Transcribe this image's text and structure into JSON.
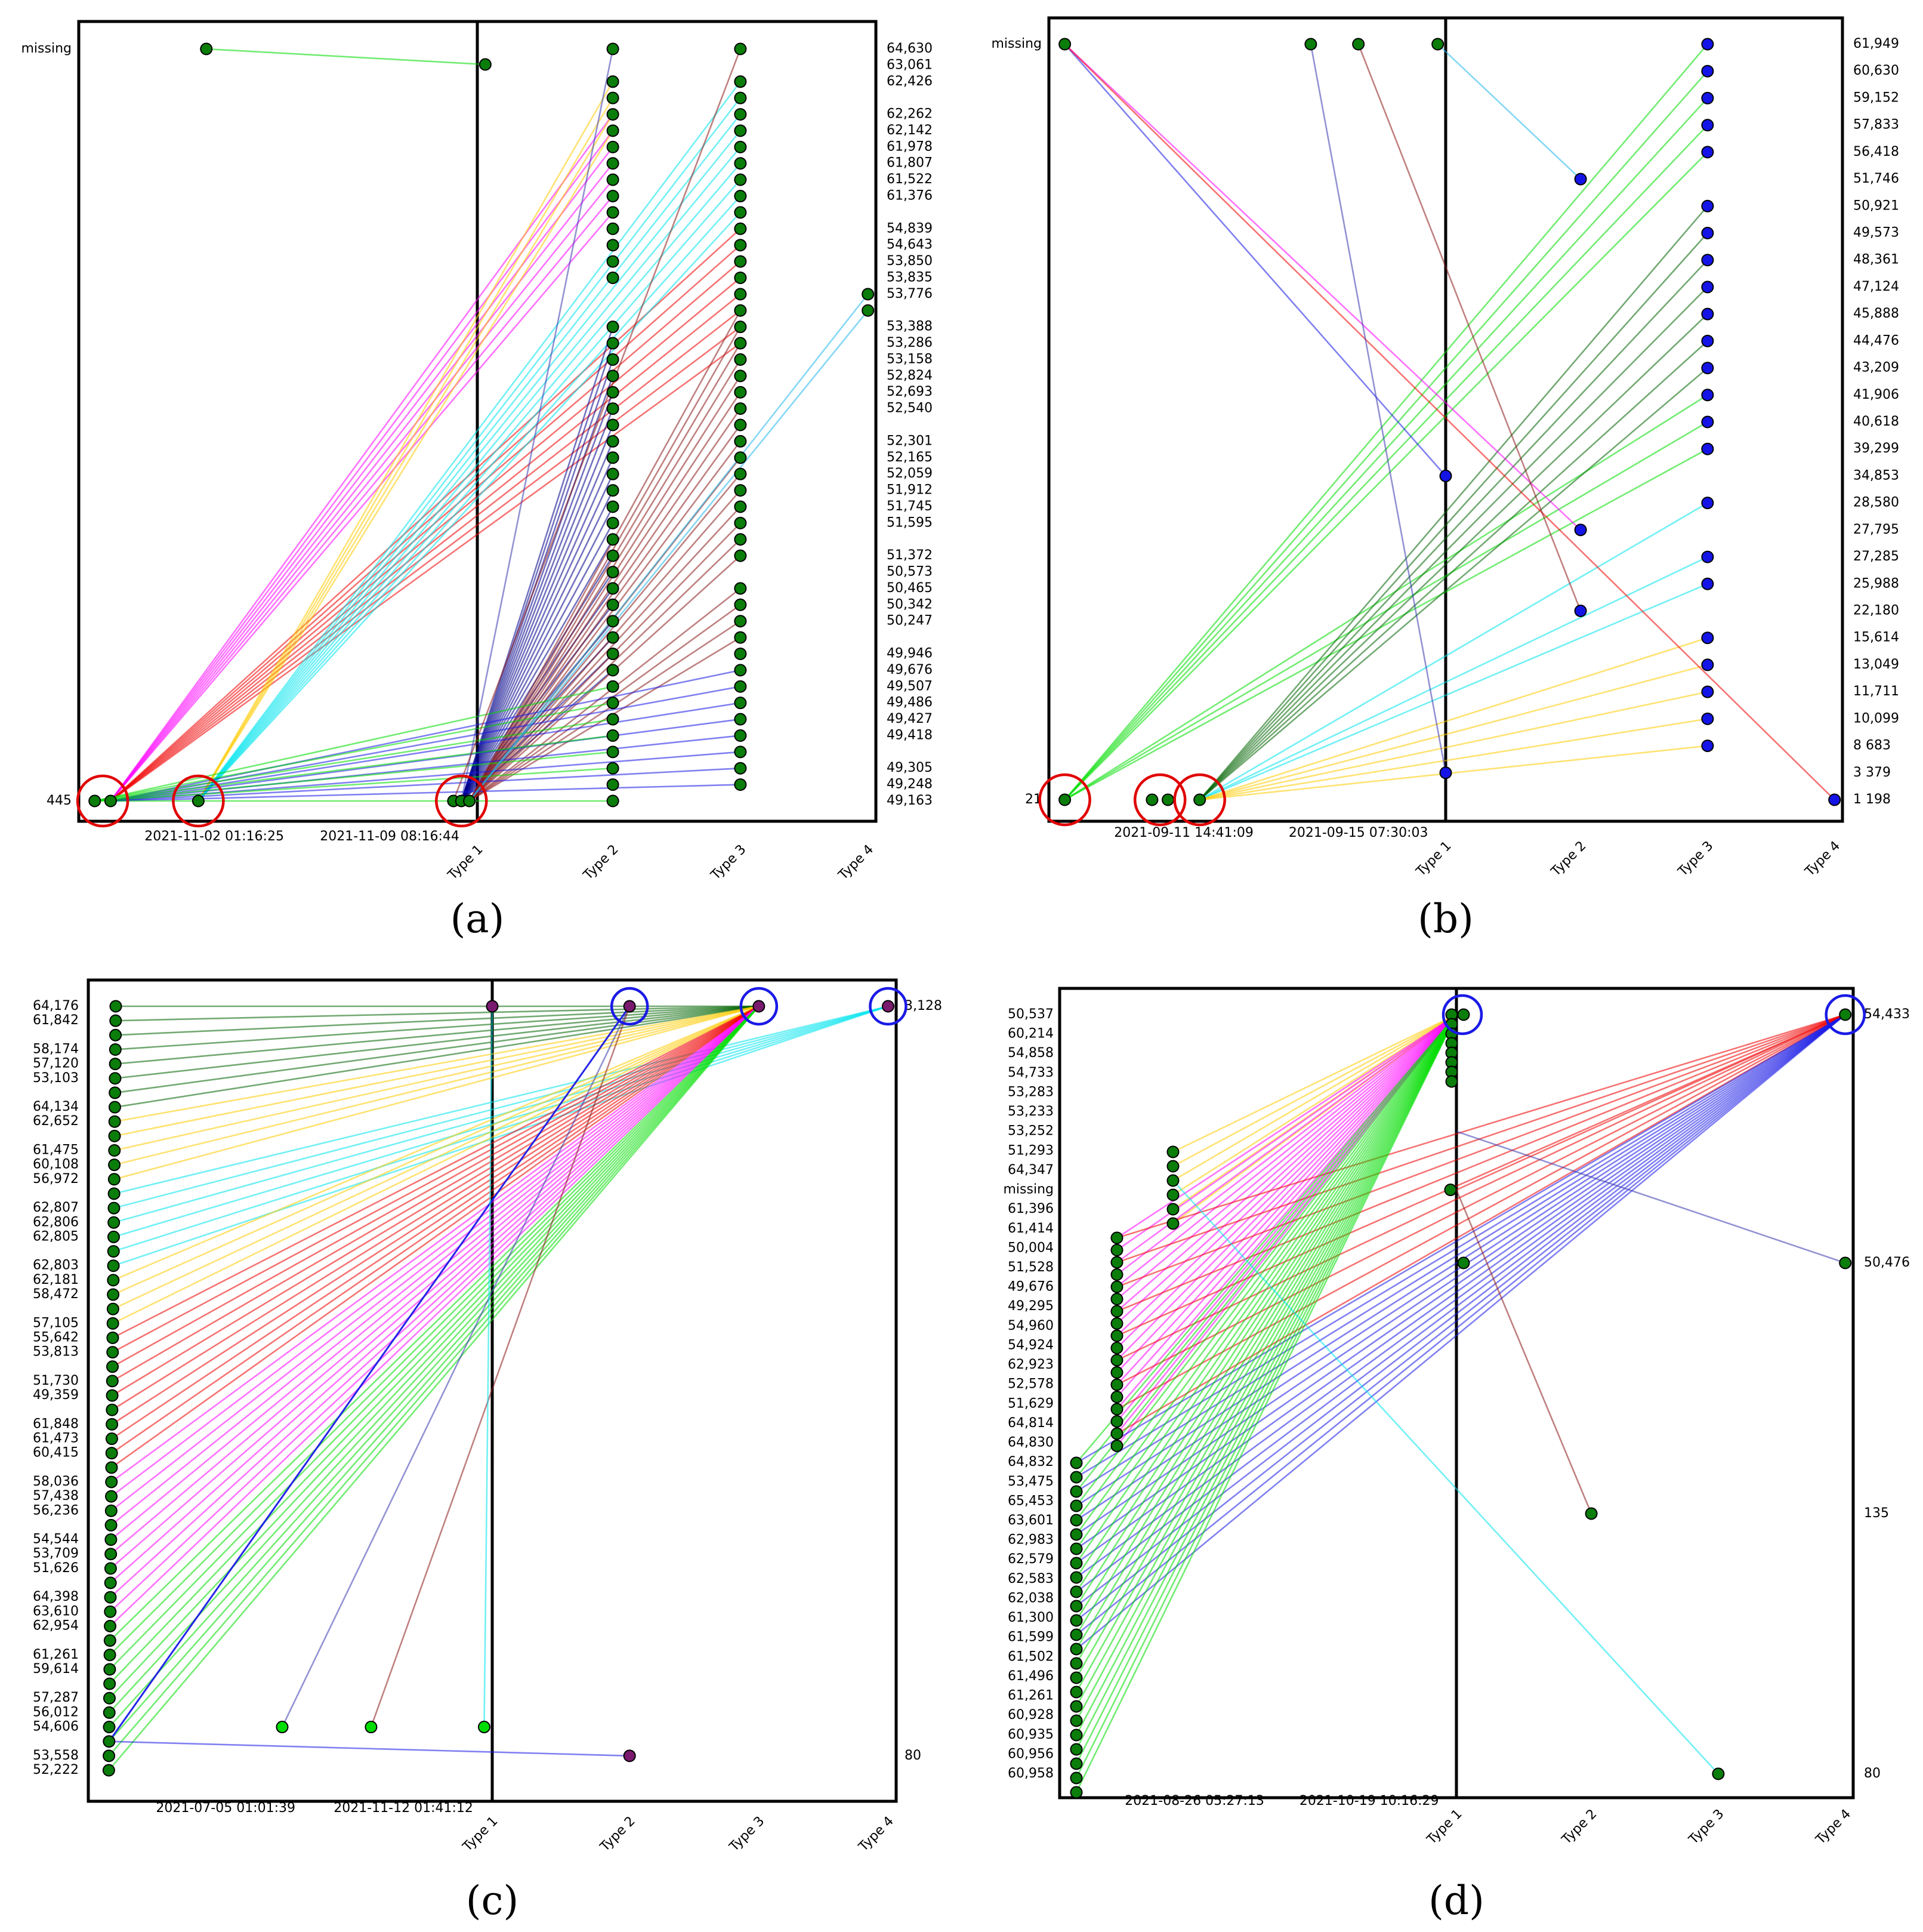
{
  "chart_data": [
    {
      "id": "a",
      "type": "scatter-line",
      "panel_label": "(a)",
      "left_labels": [
        "missing",
        "445"
      ],
      "x_tick_labels": [
        "2021-11-02 01:16:25",
        "2021-11-09 08:16:44",
        "Type 1",
        "Type 2",
        "Type 3",
        "Type 4"
      ],
      "right_labels": [
        "64,630",
        "63,061",
        "62,426",
        "62,262",
        "62,142",
        "61,978",
        "61,807",
        "61,522",
        "61,376",
        "54,839",
        "54,643",
        "53,850",
        "53,835",
        "53,776",
        "53,388",
        "53,286",
        "53,158",
        "52,824",
        "52,693",
        "52,540",
        "52,301",
        "52,165",
        "52,059",
        "51,912",
        "51,745",
        "51,595",
        "51,372",
        "50,573",
        "50,465",
        "50,342",
        "50,247",
        "49,946",
        "49,676",
        "49,507",
        "49,486",
        "49,427",
        "49,418",
        "49,305",
        "49,248",
        "49,163"
      ],
      "right_label_slots": [
        0,
        1,
        2,
        4,
        5,
        6,
        7,
        8,
        9,
        11,
        12,
        13,
        14,
        15,
        17,
        18,
        19,
        20,
        21,
        22,
        24,
        25,
        26,
        27,
        28,
        29,
        31,
        32,
        33,
        34,
        35,
        37,
        38,
        39,
        40,
        41,
        42,
        44,
        45,
        46
      ],
      "num_slots": 47,
      "divider_fraction": 0.5,
      "column_x_fractions": {
        "Type 1": 0.5,
        "Type 2": 0.67,
        "Type 3": 0.83,
        "Type 4": 0.99
      },
      "sources": [
        {
          "slot": "bottom",
          "x_fraction": 0.02
        },
        {
          "slot": "bottom",
          "x_fraction": 0.04
        },
        {
          "slot": "bottom",
          "x_fraction": 0.15
        },
        {
          "slot": "bottom",
          "x_fraction": 0.47
        },
        {
          "slot": "bottom",
          "x_fraction": 0.48
        },
        {
          "slot": "bottom",
          "x_fraction": 0.49
        },
        {
          "slot": "missing",
          "x_fraction": 0.16
        },
        {
          "slot": "missing",
          "x_fraction": 0.51
        }
      ],
      "target_slots": {
        "Type 2": [
          0,
          2,
          3,
          4,
          5,
          6,
          7,
          8,
          9,
          10,
          11,
          12,
          13,
          14,
          17,
          18,
          19,
          20,
          21,
          22,
          23,
          24,
          25,
          26,
          27,
          28,
          29,
          30,
          31,
          32,
          33,
          34,
          35,
          36,
          37,
          38,
          39,
          40,
          41,
          42,
          43,
          44,
          45,
          46
        ],
        "Type 3": [
          0,
          2,
          3,
          4,
          5,
          6,
          7,
          8,
          9,
          10,
          11,
          12,
          13,
          14,
          15,
          16,
          17,
          18,
          19,
          20,
          21,
          22,
          23,
          24,
          25,
          26,
          27,
          28,
          29,
          30,
          31,
          33,
          34,
          35,
          36,
          37,
          38,
          39,
          40,
          41,
          42,
          43,
          44,
          45
        ],
        "Type 4": [
          15,
          16
        ]
      },
      "line_groups": [
        {
          "color": "magenta",
          "source": 1,
          "column": "Type 2",
          "slots": [
            4,
            5,
            6,
            7,
            8,
            9,
            10
          ]
        },
        {
          "color": "red",
          "source": 1,
          "column": "Type 3",
          "slots": [
            11,
            12,
            13,
            14,
            15,
            16,
            17,
            18
          ]
        },
        {
          "color": "gold",
          "source": 2,
          "column": "Type 2",
          "slots": [
            2,
            3,
            4,
            5
          ]
        },
        {
          "color": "cyan",
          "source": 2,
          "column": "Type 3",
          "slots": [
            2,
            3,
            4,
            5,
            6,
            7,
            8,
            9,
            10
          ]
        },
        {
          "color": "navy",
          "source": 4,
          "column": "Type 2",
          "slots": [
            17,
            18,
            19,
            20,
            21,
            22,
            23,
            24,
            25,
            26,
            27,
            28,
            29,
            30,
            31,
            32,
            33,
            34,
            35,
            36,
            37,
            38
          ]
        },
        {
          "color": "brown",
          "source": 5,
          "column": "Type 3",
          "slots": [
            16,
            17,
            18,
            19,
            20,
            21,
            22,
            23,
            24,
            25,
            26,
            27,
            28,
            29,
            30,
            31,
            33,
            34,
            35,
            36
          ]
        },
        {
          "color": "blue",
          "source": 1,
          "column": "Type 3",
          "slots": [
            38,
            39,
            40,
            41,
            42,
            43,
            44,
            45
          ]
        },
        {
          "color": "green",
          "source": 0,
          "column": "Type 2",
          "slots": [
            39,
            40,
            41,
            42,
            43,
            44,
            46
          ]
        },
        {
          "color": "skyblue",
          "source": 5,
          "column": "Type 4",
          "slots": [
            15,
            16
          ]
        },
        {
          "color": "slateblue",
          "source": 4,
          "column": "Type 2",
          "slots": [
            0
          ]
        },
        {
          "color": "brown",
          "source": 3,
          "column": "Type 3",
          "slots": [
            0
          ]
        },
        {
          "color": "green",
          "source": 6,
          "column": "source7",
          "slots": []
        }
      ],
      "highlights": [
        {
          "ring": "red",
          "slot": "bottom",
          "x_fraction": 0.03
        },
        {
          "ring": "red",
          "slot": "bottom",
          "x_fraction": 0.15
        },
        {
          "ring": "red",
          "slot": "bottom",
          "x_fraction": 0.48
        }
      ],
      "marker_color": "#0a7d0a",
      "right_marker_color": "#0a7d0a"
    },
    {
      "id": "b",
      "type": "scatter-line",
      "panel_label": "(b)",
      "left_labels": [
        "missing",
        "21"
      ],
      "x_tick_labels": [
        "2021-09-11 14:41:09",
        "2021-09-15 07:30:03",
        "Type 1",
        "Type 2",
        "Type 3",
        "Type 4"
      ],
      "right_labels": [
        "61,949",
        "60,630",
        "59,152",
        "57,833",
        "56,418",
        "51,746",
        "50,921",
        "49,573",
        "48,361",
        "47,124",
        "45,888",
        "44,476",
        "43,209",
        "41,906",
        "40,618",
        "39,299",
        "34,853",
        "28,580",
        "27,795",
        "27,285",
        "25,988",
        "22,180",
        "15,614",
        "13,049",
        "11,711",
        "10,099",
        "8 683",
        "3 379",
        "1 198"
      ],
      "right_label_slots": [
        0,
        1,
        2,
        3,
        4,
        5,
        6,
        7,
        8,
        9,
        10,
        11,
        12,
        13,
        14,
        15,
        16,
        17,
        18,
        19,
        20,
        21,
        22,
        23,
        24,
        25,
        26,
        27,
        28
      ],
      "num_slots": 29,
      "divider_fraction": 0.5,
      "column_x_fractions": {
        "Type 1": 0.5,
        "Type 2": 0.67,
        "Type 3": 0.83,
        "Type 4": 0.99
      },
      "sources": [
        {
          "slot": "bottom",
          "x_fraction": 0.02
        },
        {
          "slot": "bottom",
          "x_fraction": 0.13
        },
        {
          "slot": "bottom",
          "x_fraction": 0.15
        },
        {
          "slot": "bottom",
          "x_fraction": 0.19
        },
        {
          "slot": "missing",
          "x_fraction": 0.02
        },
        {
          "slot": "missing",
          "x_fraction": 0.33
        },
        {
          "slot": "missing",
          "x_fraction": 0.39
        },
        {
          "slot": "missing",
          "x_fraction": 0.49
        }
      ],
      "target_slots": {
        "Type 1": [
          16,
          27
        ],
        "Type 2": [
          5,
          18,
          21
        ],
        "Type 3": [
          0,
          1,
          2,
          3,
          4,
          6,
          7,
          8,
          9,
          10,
          11,
          12,
          13,
          14,
          15,
          17,
          19,
          20,
          22,
          23,
          24,
          25,
          26
        ],
        "Type 4": [
          28
        ]
      },
      "line_groups": [
        {
          "color": "green",
          "source": 0,
          "column": "Type 3",
          "slots": [
            0,
            1,
            2,
            3,
            4,
            13,
            14,
            15
          ]
        },
        {
          "color": "darkgreen",
          "source": 3,
          "column": "Type 3",
          "slots": [
            6,
            7,
            8,
            9,
            10,
            11,
            12
          ]
        },
        {
          "color": "cyan",
          "source": 3,
          "column": "Type 3",
          "slots": [
            17,
            19,
            20
          ]
        },
        {
          "color": "gold",
          "source": 3,
          "column": "Type 3",
          "slots": [
            22,
            23,
            24,
            25,
            26
          ]
        },
        {
          "color": "blue",
          "source": 4,
          "column": "Type 1",
          "slots": [
            16
          ]
        },
        {
          "color": "magenta",
          "source": 4,
          "column": "Type 2",
          "slots": [
            18
          ]
        },
        {
          "color": "red",
          "source": 4,
          "column": "Type 4",
          "slots": [
            28
          ]
        },
        {
          "color": "slateblue",
          "source": 5,
          "column": "Type 1",
          "slots": [
            27
          ]
        },
        {
          "color": "brown",
          "source": 6,
          "column": "Type 2",
          "slots": [
            21
          ]
        },
        {
          "color": "skyblue",
          "source": 7,
          "column": "Type 2",
          "slots": [
            5
          ]
        }
      ],
      "highlights": [
        {
          "ring": "red",
          "slot": "bottom",
          "x_fraction": 0.02
        },
        {
          "ring": "red",
          "slot": "bottom",
          "x_fraction": 0.14
        },
        {
          "ring": "red",
          "slot": "bottom",
          "x_fraction": 0.19
        }
      ],
      "marker_color": "#0a7d0a",
      "right_marker_color": "#1414e6"
    },
    {
      "id": "c",
      "type": "scatter-line",
      "panel_label": "(c)",
      "left_labels": [
        "64,176",
        "61,842",
        "58,174",
        "57,120",
        "53,103",
        "64,134",
        "62,652",
        "61,475",
        "60,108",
        "56,972",
        "62,807",
        "62,806",
        "62,805",
        "62,803",
        "62,181",
        "58,472",
        "57,105",
        "55,642",
        "53,813",
        "51,730",
        "49,359",
        "61,848",
        "61,473",
        "60,415",
        "58,036",
        "57,438",
        "56,236",
        "54,544",
        "53,709",
        "51,626",
        "64,398",
        "63,610",
        "62,954",
        "61,261",
        "59,614",
        "57,287",
        "56,012",
        "54,606",
        "53,558",
        "52,222"
      ],
      "left_label_slots": [
        0,
        1,
        3,
        4,
        5,
        7,
        8,
        10,
        11,
        12,
        14,
        15,
        16,
        18,
        19,
        20,
        22,
        23,
        24,
        26,
        27,
        29,
        30,
        31,
        33,
        34,
        35,
        37,
        38,
        39,
        41,
        42,
        43,
        45,
        46,
        48,
        49,
        50,
        52,
        53
      ],
      "num_slots": 54,
      "right_labels": [
        "3,128",
        "80"
      ],
      "x_tick_labels": [
        "2021-07-05 01:01:39",
        "2021-11-12 01:41:12",
        "Type 1",
        "Type 2",
        "Type 3",
        "Type 4"
      ],
      "divider_fraction": 0.5,
      "column_x_fractions": {
        "Type 1": 0.5,
        "Type 2": 0.67,
        "Type 3": 0.83,
        "Type 4": 0.99
      },
      "line_groups": [
        {
          "color": "darkgreen",
          "target": "Type 3",
          "slots": [
            0,
            1,
            2,
            3,
            4,
            5,
            6,
            7
          ]
        },
        {
          "color": "gold",
          "target": "Type 3",
          "slots": [
            8,
            9,
            10,
            11,
            12
          ]
        },
        {
          "color": "cyan",
          "target": "Type 4",
          "slots": [
            13,
            14,
            15,
            16,
            17,
            18
          ]
        },
        {
          "color": "gold",
          "target": "Type 3",
          "slots": [
            19,
            20,
            21,
            22
          ]
        },
        {
          "color": "red",
          "target": "Type 3",
          "slots": [
            23,
            24,
            25,
            26,
            27,
            28,
            29,
            30,
            31,
            32
          ]
        },
        {
          "color": "magenta",
          "target": "Type 3",
          "slots": [
            33,
            34,
            35,
            36,
            37,
            38,
            39,
            40,
            41,
            42,
            43
          ]
        },
        {
          "color": "green",
          "target": "Type 3",
          "slots": [
            44,
            45,
            46,
            47,
            48,
            49,
            50,
            51,
            52,
            53
          ]
        }
      ],
      "extra_points": [
        {
          "label": "Type 1 top",
          "x_fraction": 0.5,
          "slot": 0,
          "color": "purple"
        },
        {
          "label": "Type 2 top",
          "x_fraction": 0.67,
          "slot": 0,
          "color": "purple"
        },
        {
          "label": "Type 3 top",
          "x_fraction": 0.83,
          "slot": 0,
          "color": "purple"
        },
        {
          "label": "Type 4 top",
          "x_fraction": 0.99,
          "slot": 0,
          "color": "purple"
        },
        {
          "label": "mid 1",
          "x_fraction": 0.24,
          "slot": 50,
          "color": "green"
        },
        {
          "label": "mid 2",
          "x_fraction": 0.35,
          "slot": 50,
          "color": "green"
        },
        {
          "label": "mid 3",
          "x_fraction": 0.49,
          "slot": 50,
          "color": "green"
        },
        {
          "label": "Type 2 bottom",
          "x_fraction": 0.67,
          "slot": 52,
          "color": "purple"
        }
      ],
      "highlights": [
        {
          "ring": "blue",
          "column": "Type 2"
        },
        {
          "ring": "blue",
          "column": "Type 3"
        },
        {
          "ring": "blue",
          "column": "Type 4"
        }
      ],
      "marker_color": "#0a7d0a",
      "right_marker_color": "#7a1a6e"
    },
    {
      "id": "d",
      "type": "scatter-line",
      "panel_label": "(d)",
      "left_labels": [
        "50,537",
        "60,214",
        "54,858",
        "54,733",
        "53,283",
        "53,233",
        "53,252",
        "51,293",
        "64,347",
        "missing",
        "61,396",
        "61,414",
        "50,004",
        "51,528",
        "49,676",
        "49,295",
        "54,960",
        "54,924",
        "62,923",
        "52,578",
        "51,629",
        "64,814",
        "64,830",
        "64,832",
        "53,475",
        "65,453",
        "63,601",
        "62,983",
        "62,579",
        "62,583",
        "62,038",
        "61,300",
        "61,599",
        "61,502",
        "61,496",
        "61,261",
        "60,928",
        "60,935",
        "60,956",
        "60,958"
      ],
      "num_slots": 40,
      "right_labels": [
        "54,433",
        "50,476",
        "135",
        "80"
      ],
      "x_tick_labels": [
        "2021-08-26 05:27:13",
        "2021-10-19 10:16:29",
        "Type 1",
        "Type 2",
        "Type 3",
        "Type 4"
      ],
      "divider_fraction": 0.5,
      "column_x_fractions": {
        "Type 1": 0.5,
        "Type 2": 0.67,
        "Type 3": 0.83,
        "Type 4": 0.99
      },
      "line_groups": [
        {
          "color": "gold",
          "target": "Type 1",
          "count": 8
        },
        {
          "color": "magenta",
          "target": "Type 1",
          "count": 14
        },
        {
          "color": "red",
          "target": "Type 4",
          "count": 12
        },
        {
          "color": "blue",
          "target": "Type 4",
          "count": 14
        },
        {
          "color": "green",
          "target": "Type 1",
          "count": 16
        },
        {
          "color": "cyan",
          "target": "Type 3",
          "count": 1
        },
        {
          "color": "brown",
          "target": "Type 2",
          "count": 1
        },
        {
          "color": "slateblue",
          "target": "Type 4",
          "count": 1
        }
      ],
      "highlights": [
        {
          "ring": "blue",
          "column": "Type 1"
        },
        {
          "ring": "blue",
          "column": "Type 4"
        }
      ],
      "marker_color": "#0a7d0a",
      "right_marker_color": "#0a7d0a"
    }
  ],
  "colors": {
    "magenta": "#ff00ff",
    "red": "#f00000",
    "gold": "#ffcc00",
    "cyan": "#00e5ee",
    "navy": "#00008b",
    "brown": "#8b1a1a",
    "blue": "#1a1ae6",
    "green": "#00dd00",
    "darkgreen": "#006400",
    "skyblue": "#22b8ee",
    "slateblue": "#3a3ab0",
    "purple": "#7a1a6e"
  }
}
